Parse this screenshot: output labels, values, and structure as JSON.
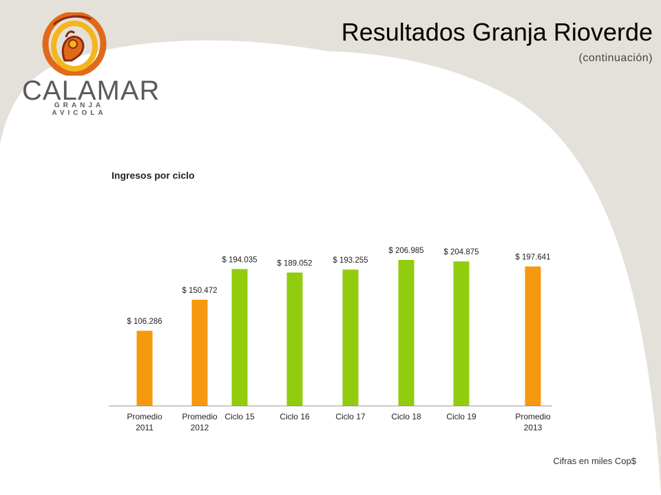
{
  "header": {
    "title": "Resultados Granja Rioverde",
    "subtitle": "(continuación)"
  },
  "logo": {
    "name": "CALAMAR",
    "tagline": "GRANJA AVICOLA"
  },
  "footnote": "Cifras en miles Cop$",
  "colors": {
    "average": "#f7990f",
    "cycle": "#92cc0f",
    "background_curve": "#e4e1da",
    "logo_orange": "#e06a1a",
    "logo_yellow": "#f5b51c",
    "logo_dark": "#8a2a12"
  },
  "chart_data": {
    "type": "bar",
    "title": "Ingresos por ciclo",
    "categories": [
      [
        "Promedio",
        "2011"
      ],
      [
        "Promedio",
        "2012"
      ],
      [
        "Ciclo 15"
      ],
      [
        "Ciclo 16"
      ],
      [
        "Ciclo 17"
      ],
      [
        "Ciclo 18"
      ],
      [
        "Ciclo 19"
      ],
      [
        "Promedio",
        "2013"
      ]
    ],
    "values": [
      106286,
      150472,
      194035,
      189052,
      193255,
      206985,
      204875,
      197641
    ],
    "data_labels": [
      "$ 106.286",
      "$ 150.472",
      "$ 194.035",
      "$ 189.052",
      "$ 193.255",
      "$ 206.985",
      "$ 204.875",
      "$ 197.641"
    ],
    "bar_kinds": [
      "average",
      "average",
      "cycle",
      "cycle",
      "cycle",
      "cycle",
      "cycle",
      "average"
    ],
    "ylim": [
      0,
      210000
    ],
    "grid": false,
    "legend": "none"
  }
}
